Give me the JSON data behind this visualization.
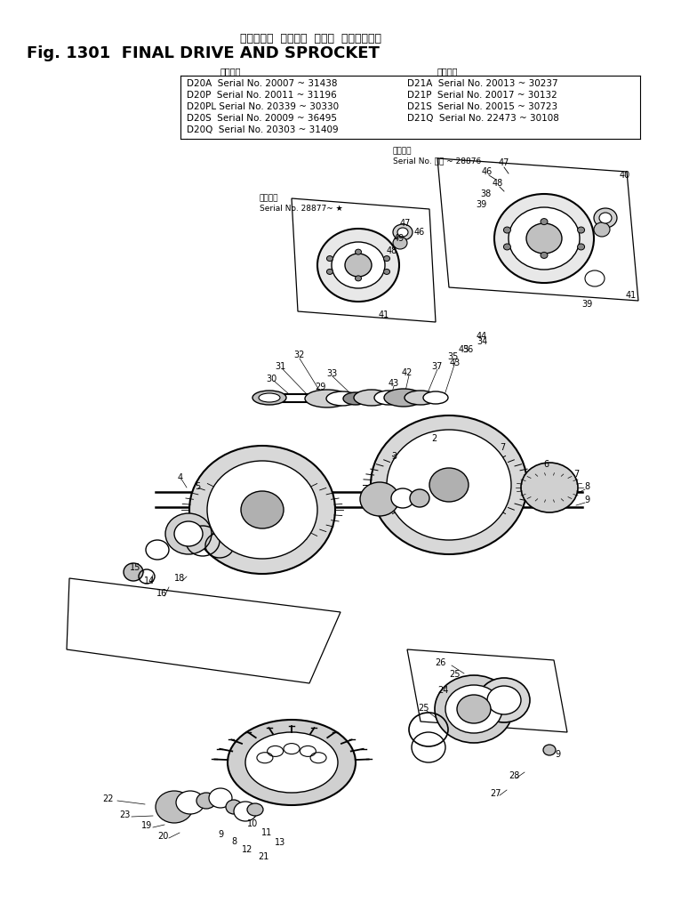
{
  "title_japanese": "ファイナル  ドライブ  および  スプロケット",
  "title_english": "Fig. 1301  FINAL DRIVE AND SPROCKET",
  "applicable_label": "適用号機",
  "serial_data_left": [
    "D20A  Serial No. 20007 ~ 31438",
    "D20P  Serial No. 20011 ~ 31196",
    "D20PL Serial No. 20339 ~ 30330",
    "D20S  Serial No. 20009 ~ 36495",
    "D20Q  Serial No. 20303 ~ 31409"
  ],
  "serial_data_right": [
    "D21A  Serial No. 20013 ~ 30237",
    "D21P  Serial No. 20017 ~ 30132",
    "D21S  Serial No. 20015 ~ 30723",
    "D21Q  Serial No. 22473 ~ 30108"
  ],
  "note1_japanese": "適用号機",
  "note1_serial": "Serial No. ・・ ~ 28876",
  "note2_japanese": "適用号機",
  "note2_serial": "Serial No. 28877~ ★",
  "bg_color": "#ffffff",
  "text_color": "#000000",
  "dpi": 100,
  "fig_width": 7.57,
  "fig_height": 10.15
}
